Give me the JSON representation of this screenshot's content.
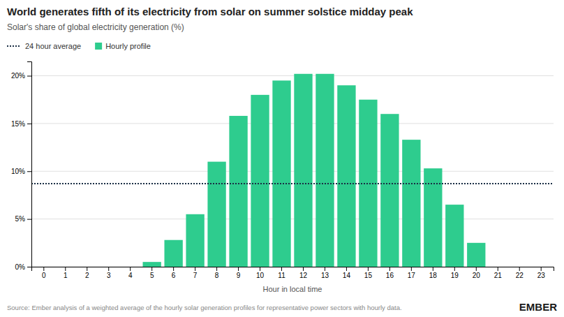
{
  "chart_data": {
    "type": "bar",
    "title": "World generates fifth of its electricity from solar on summer solstice midday peak",
    "subtitle": "Solar's share of global electricity generation (%)",
    "x_label": "Hour in local time",
    "source": "Source: Ember analysis of a weighted average of the hourly solar generation profiles for representative power sectors with hourly data.",
    "annotations": [
      "EMBER"
    ],
    "categories": [
      "0",
      "1",
      "2",
      "3",
      "4",
      "5",
      "6",
      "7",
      "8",
      "9",
      "10",
      "11",
      "12",
      "13",
      "14",
      "15",
      "16",
      "17",
      "18",
      "19",
      "20",
      "21",
      "22",
      "23"
    ],
    "series": [
      {
        "name": "Hourly profile",
        "color": "#2ecc8e",
        "values": [
          0,
          0,
          0,
          0,
          0,
          0.5,
          2.8,
          5.5,
          11.0,
          15.8,
          18.0,
          19.5,
          20.2,
          20.2,
          19.0,
          17.5,
          16.0,
          13.3,
          10.3,
          6.5,
          2.5,
          0,
          0,
          0
        ]
      }
    ],
    "average_line": {
      "name": "24 hour average",
      "value": 8.7,
      "color": "#1a2e44",
      "line_style": "dotted"
    },
    "ylim": [
      0,
      21.5
    ],
    "yticks": [
      {
        "value": 0,
        "label": "0%"
      },
      {
        "value": 5,
        "label": "5%"
      },
      {
        "value": 10,
        "label": "10%"
      },
      {
        "value": 15,
        "label": "15%"
      },
      {
        "value": 20,
        "label": "20%"
      }
    ],
    "grid": true,
    "legend": "top"
  }
}
